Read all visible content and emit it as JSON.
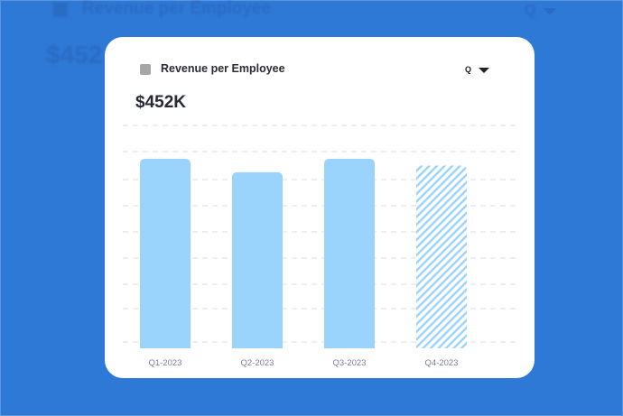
{
  "background": {
    "title": "Revenue per Employee",
    "value": "$452",
    "period": "Q"
  },
  "card": {
    "title": "Revenue per Employee",
    "period_selector": "Q",
    "headline_value": "$452K"
  },
  "colors": {
    "background": "#2e78d6",
    "bar": "#9ad3fc",
    "legend_swatch": "#a6a6a6"
  },
  "chart_data": {
    "type": "bar",
    "title": "Revenue per Employee",
    "categories": [
      "Q1-2023",
      "Q2-2023",
      "Q3-2023",
      "Q4-2023"
    ],
    "values_relative_to_axis_max": [
      0.85,
      0.79,
      0.85,
      0.82
    ],
    "styles": [
      "solid",
      "solid",
      "solid",
      "hatched"
    ],
    "ylim": [
      0,
      1
    ],
    "grid": true,
    "y_tick_labels_shown": false,
    "legend": "top-left"
  }
}
